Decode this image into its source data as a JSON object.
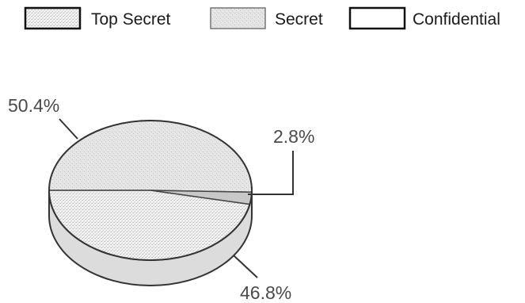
{
  "chart_data": {
    "type": "pie",
    "style": "3d-tilted",
    "legend_position": "top",
    "series": [
      {
        "slices": [
          {
            "label": "Top Secret",
            "value": 46.8,
            "label_text": "46.8%",
            "color": "#ebebeb",
            "fill_style": "dense-stipple"
          },
          {
            "label": "Secret",
            "value": 50.4,
            "label_text": "50.4%",
            "color": "#e0e0e0",
            "fill_style": "light-stipple"
          },
          {
            "label": "Confidential",
            "value": 2.8,
            "label_text": "2.8%",
            "color": "#c8c8c8",
            "fill_style": "solid-gray"
          }
        ]
      }
    ]
  }
}
